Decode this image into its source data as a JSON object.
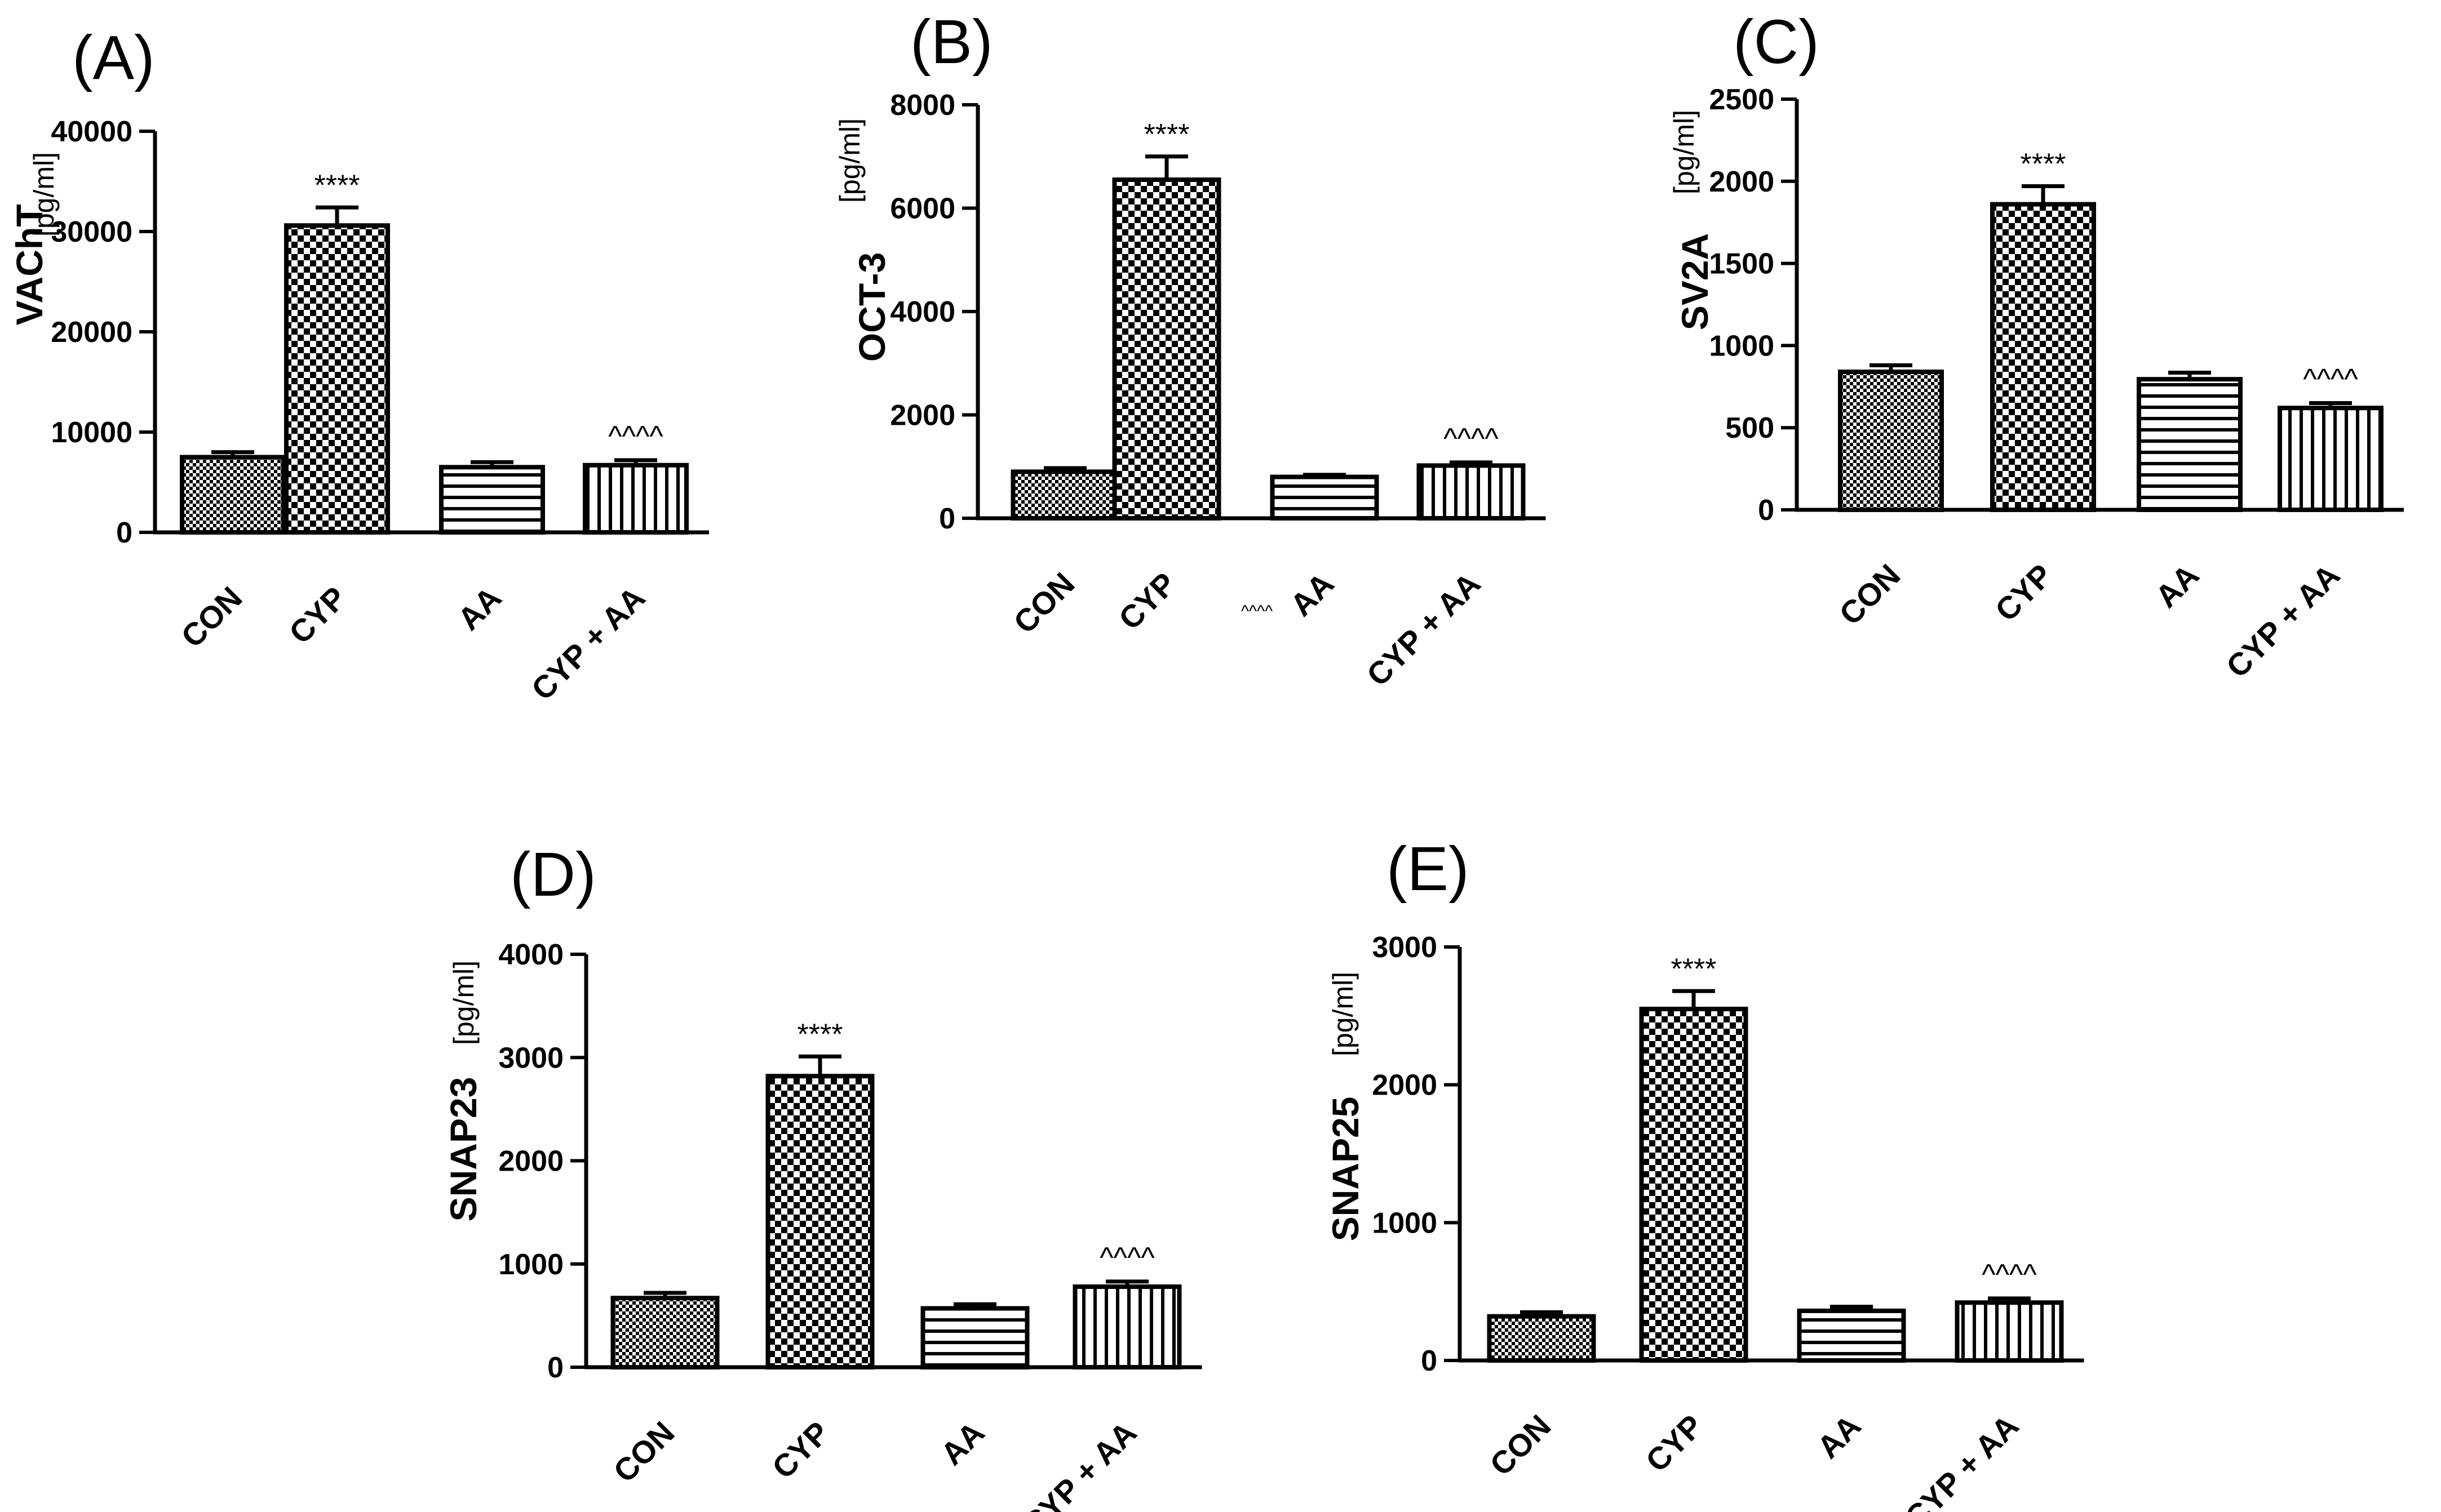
{
  "figure": {
    "categories": [
      "CON",
      "CYP",
      "AA",
      "CYP + AA"
    ],
    "patterns": [
      "fine-check",
      "big-check",
      "horizontal-lines",
      "vertical-lines"
    ]
  },
  "chart_data": [
    {
      "panel": "(A)",
      "type": "bar",
      "title": "",
      "ylabel": "VAChT",
      "yunit": "[pg/ml]",
      "ylim": [
        0,
        40000
      ],
      "yticks": [
        "0",
        "10000",
        "20000",
        "30000",
        "40000"
      ],
      "categories": [
        "CON",
        "CYP",
        "AA",
        "CYP + AA"
      ],
      "values": [
        7500,
        30600,
        6500,
        6700
      ],
      "errors": [
        500,
        1800,
        500,
        500
      ],
      "annotations": [
        "",
        "****",
        "",
        "^^^^"
      ],
      "extra_annotation": ""
    },
    {
      "panel": "(B)",
      "type": "bar",
      "title": "",
      "ylabel": "OCT-3",
      "yunit": "[pg/ml]",
      "ylim": [
        0,
        8000
      ],
      "yticks": [
        "0",
        "2000",
        "4000",
        "6000",
        "8000"
      ],
      "categories": [
        "CON",
        "CYP",
        "AA",
        "CYP + AA"
      ],
      "values": [
        900,
        6550,
        800,
        1020
      ],
      "errors": [
        70,
        450,
        40,
        60
      ],
      "annotations": [
        "",
        "****",
        "",
        "^^^^"
      ],
      "extra_annotation": "^^^^"
    },
    {
      "panel": "(C)",
      "type": "bar",
      "title": "",
      "ylabel": "SV2A",
      "yunit": "[pg/ml]",
      "ylim": [
        0,
        2500
      ],
      "yticks": [
        "0",
        "500",
        "1000",
        "1500",
        "2000",
        "2500"
      ],
      "categories": [
        "CON",
        "CYP",
        "AA",
        "CYP + AA"
      ],
      "values": [
        840,
        1860,
        795,
        620
      ],
      "errors": [
        40,
        110,
        40,
        30
      ],
      "annotations": [
        "",
        "****",
        "",
        "^^^^"
      ],
      "extra_annotation": ""
    },
    {
      "panel": "(D)",
      "type": "bar",
      "title": "",
      "ylabel": "SNAP23",
      "yunit": "[pg/ml]",
      "ylim": [
        0,
        4000
      ],
      "yticks": [
        "0",
        "1000",
        "2000",
        "3000",
        "4000"
      ],
      "categories": [
        "CON",
        "CYP",
        "AA",
        "CYP + AA"
      ],
      "values": [
        670,
        2820,
        570,
        780
      ],
      "errors": [
        50,
        190,
        40,
        50
      ],
      "annotations": [
        "",
        "****",
        "",
        "^^^^"
      ],
      "extra_annotation": ""
    },
    {
      "panel": "(E)",
      "type": "bar",
      "title": "",
      "ylabel": "SNAP25",
      "yunit": "[pg/ml]",
      "ylim": [
        0,
        3000
      ],
      "yticks": [
        "0",
        "1000",
        "2000",
        "3000"
      ],
      "categories": [
        "CON",
        "CYP",
        "AA",
        "CYP + AA"
      ],
      "values": [
        320,
        2550,
        360,
        420
      ],
      "errors": [
        30,
        130,
        30,
        30
      ],
      "annotations": [
        "",
        "****",
        "",
        "^^^^"
      ],
      "extra_annotation": ""
    }
  ]
}
